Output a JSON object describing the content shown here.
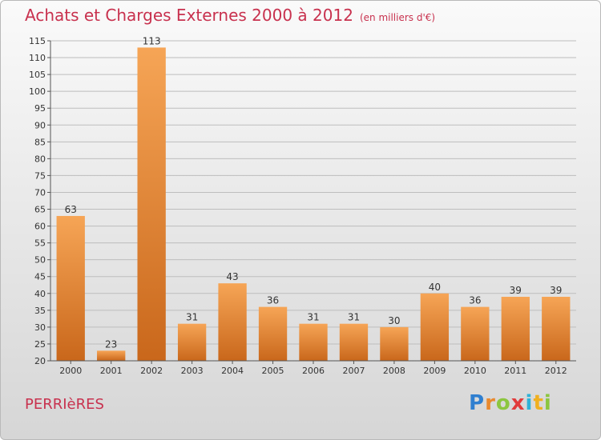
{
  "chart_data": {
    "type": "bar",
    "title": "Achats et Charges Externes 2000 à 2012",
    "subtitle": "(en milliers d'€)",
    "categories": [
      "2000",
      "2001",
      "2002",
      "2003",
      "2004",
      "2005",
      "2006",
      "2007",
      "2008",
      "2009",
      "2010",
      "2011",
      "2012"
    ],
    "values": [
      63,
      23,
      113,
      31,
      43,
      36,
      31,
      31,
      30,
      40,
      36,
      39,
      39
    ],
    "ylim": [
      20,
      115
    ],
    "yticks": [
      20,
      25,
      30,
      35,
      40,
      45,
      50,
      55,
      60,
      65,
      70,
      75,
      80,
      85,
      90,
      95,
      100,
      105,
      110,
      115
    ],
    "xlabel": "",
    "ylabel": "",
    "grid": true,
    "bar_color_light": "#f6a556",
    "bar_color_dark": "#c9671b"
  },
  "place_name": "PERRIèRES",
  "logo": {
    "letters": [
      "P",
      "r",
      "o",
      "x",
      "i",
      "t",
      "i"
    ],
    "colors": [
      "#2f7fd0",
      "#e9892e",
      "#8cc63f",
      "#e13b3b",
      "#2fb3d8",
      "#f0b020",
      "#8cc63f"
    ]
  },
  "colors": {
    "title": "#c8314e",
    "grid": "#bdbdbd",
    "axis": "#555555"
  }
}
